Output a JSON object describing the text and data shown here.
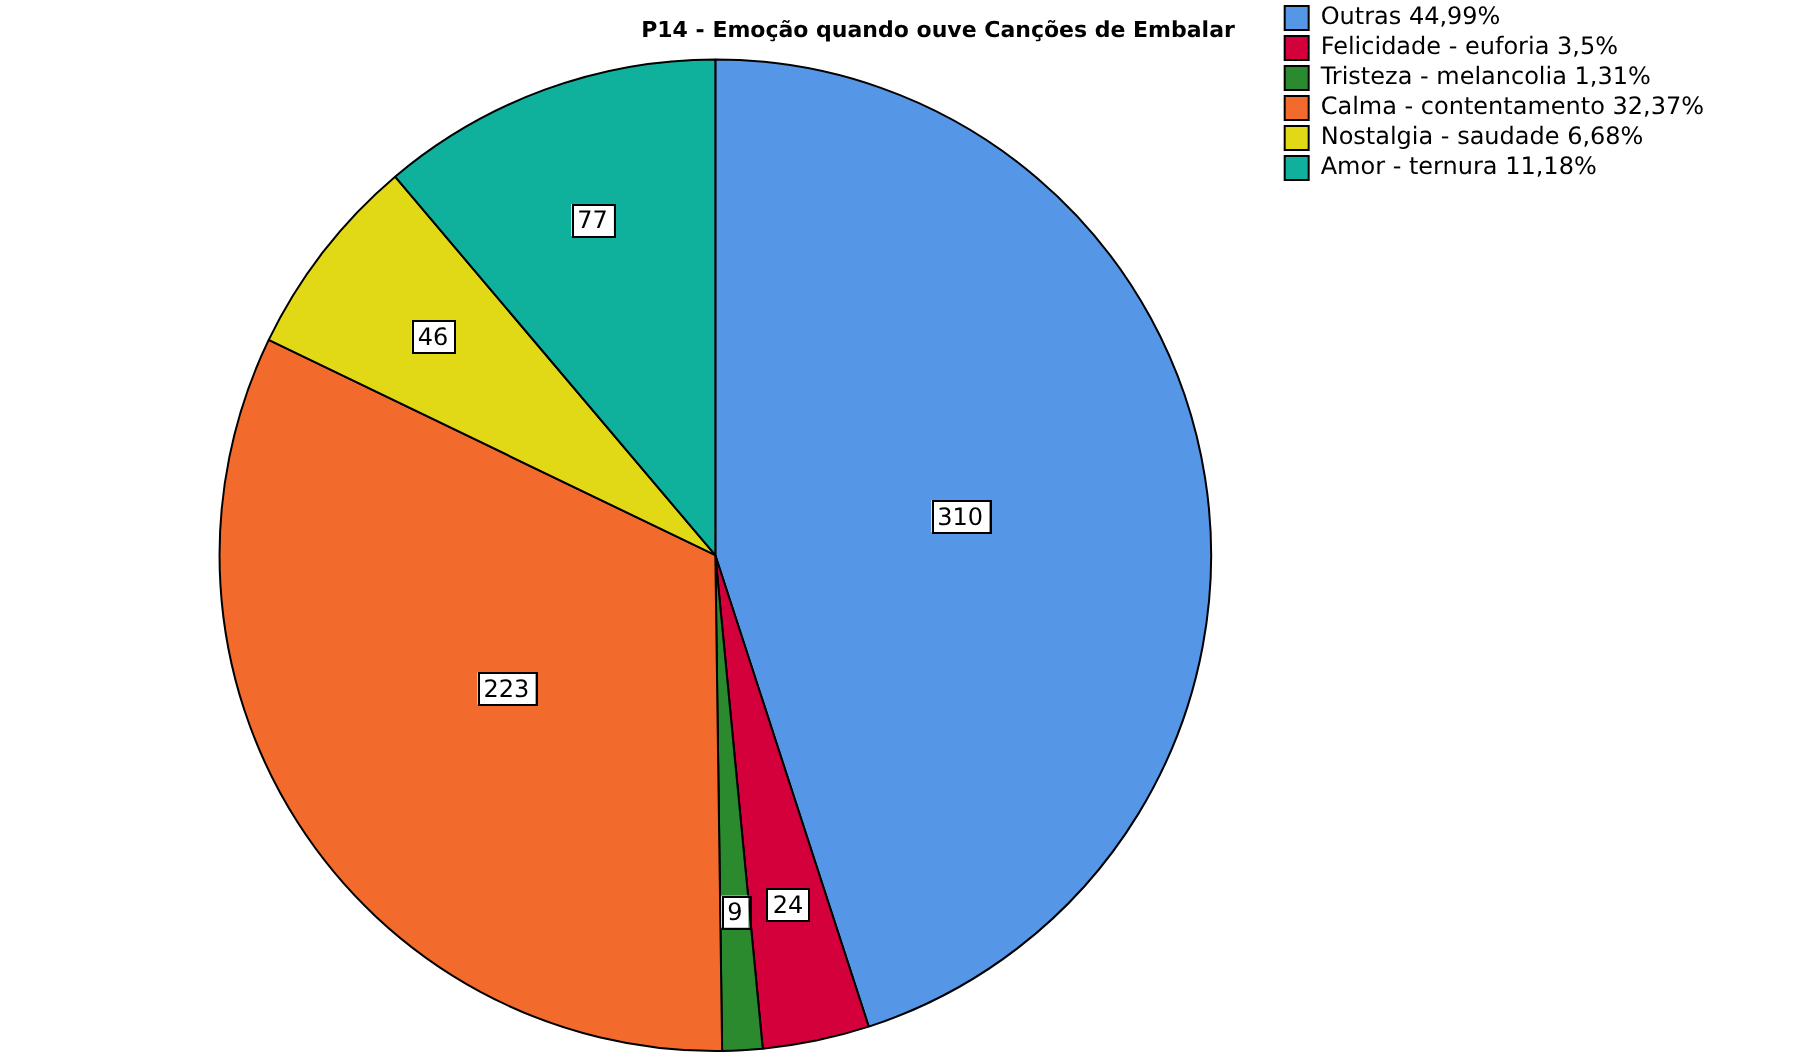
{
  "chart_data": {
    "type": "pie",
    "title": "P14 - Emoção quando ouve Canções de Embalar",
    "categories": [
      "Outras 44,99%",
      "Felicidade - euforia 3,5%",
      "Tristeza - melancolia 1,31%",
      "Calma - contentamento 32,37%",
      "Nostalgia - saudade 6,68%",
      "Amor - ternura 11,18%"
    ],
    "values": [
      310,
      24,
      9,
      223,
      46,
      77
    ],
    "colors": [
      "#5596e6",
      "#d4003b",
      "#2c8a2e",
      "#f26b2c",
      "#e2d916",
      "#0fb09c"
    ],
    "data_labels": true,
    "legend": "top right"
  }
}
